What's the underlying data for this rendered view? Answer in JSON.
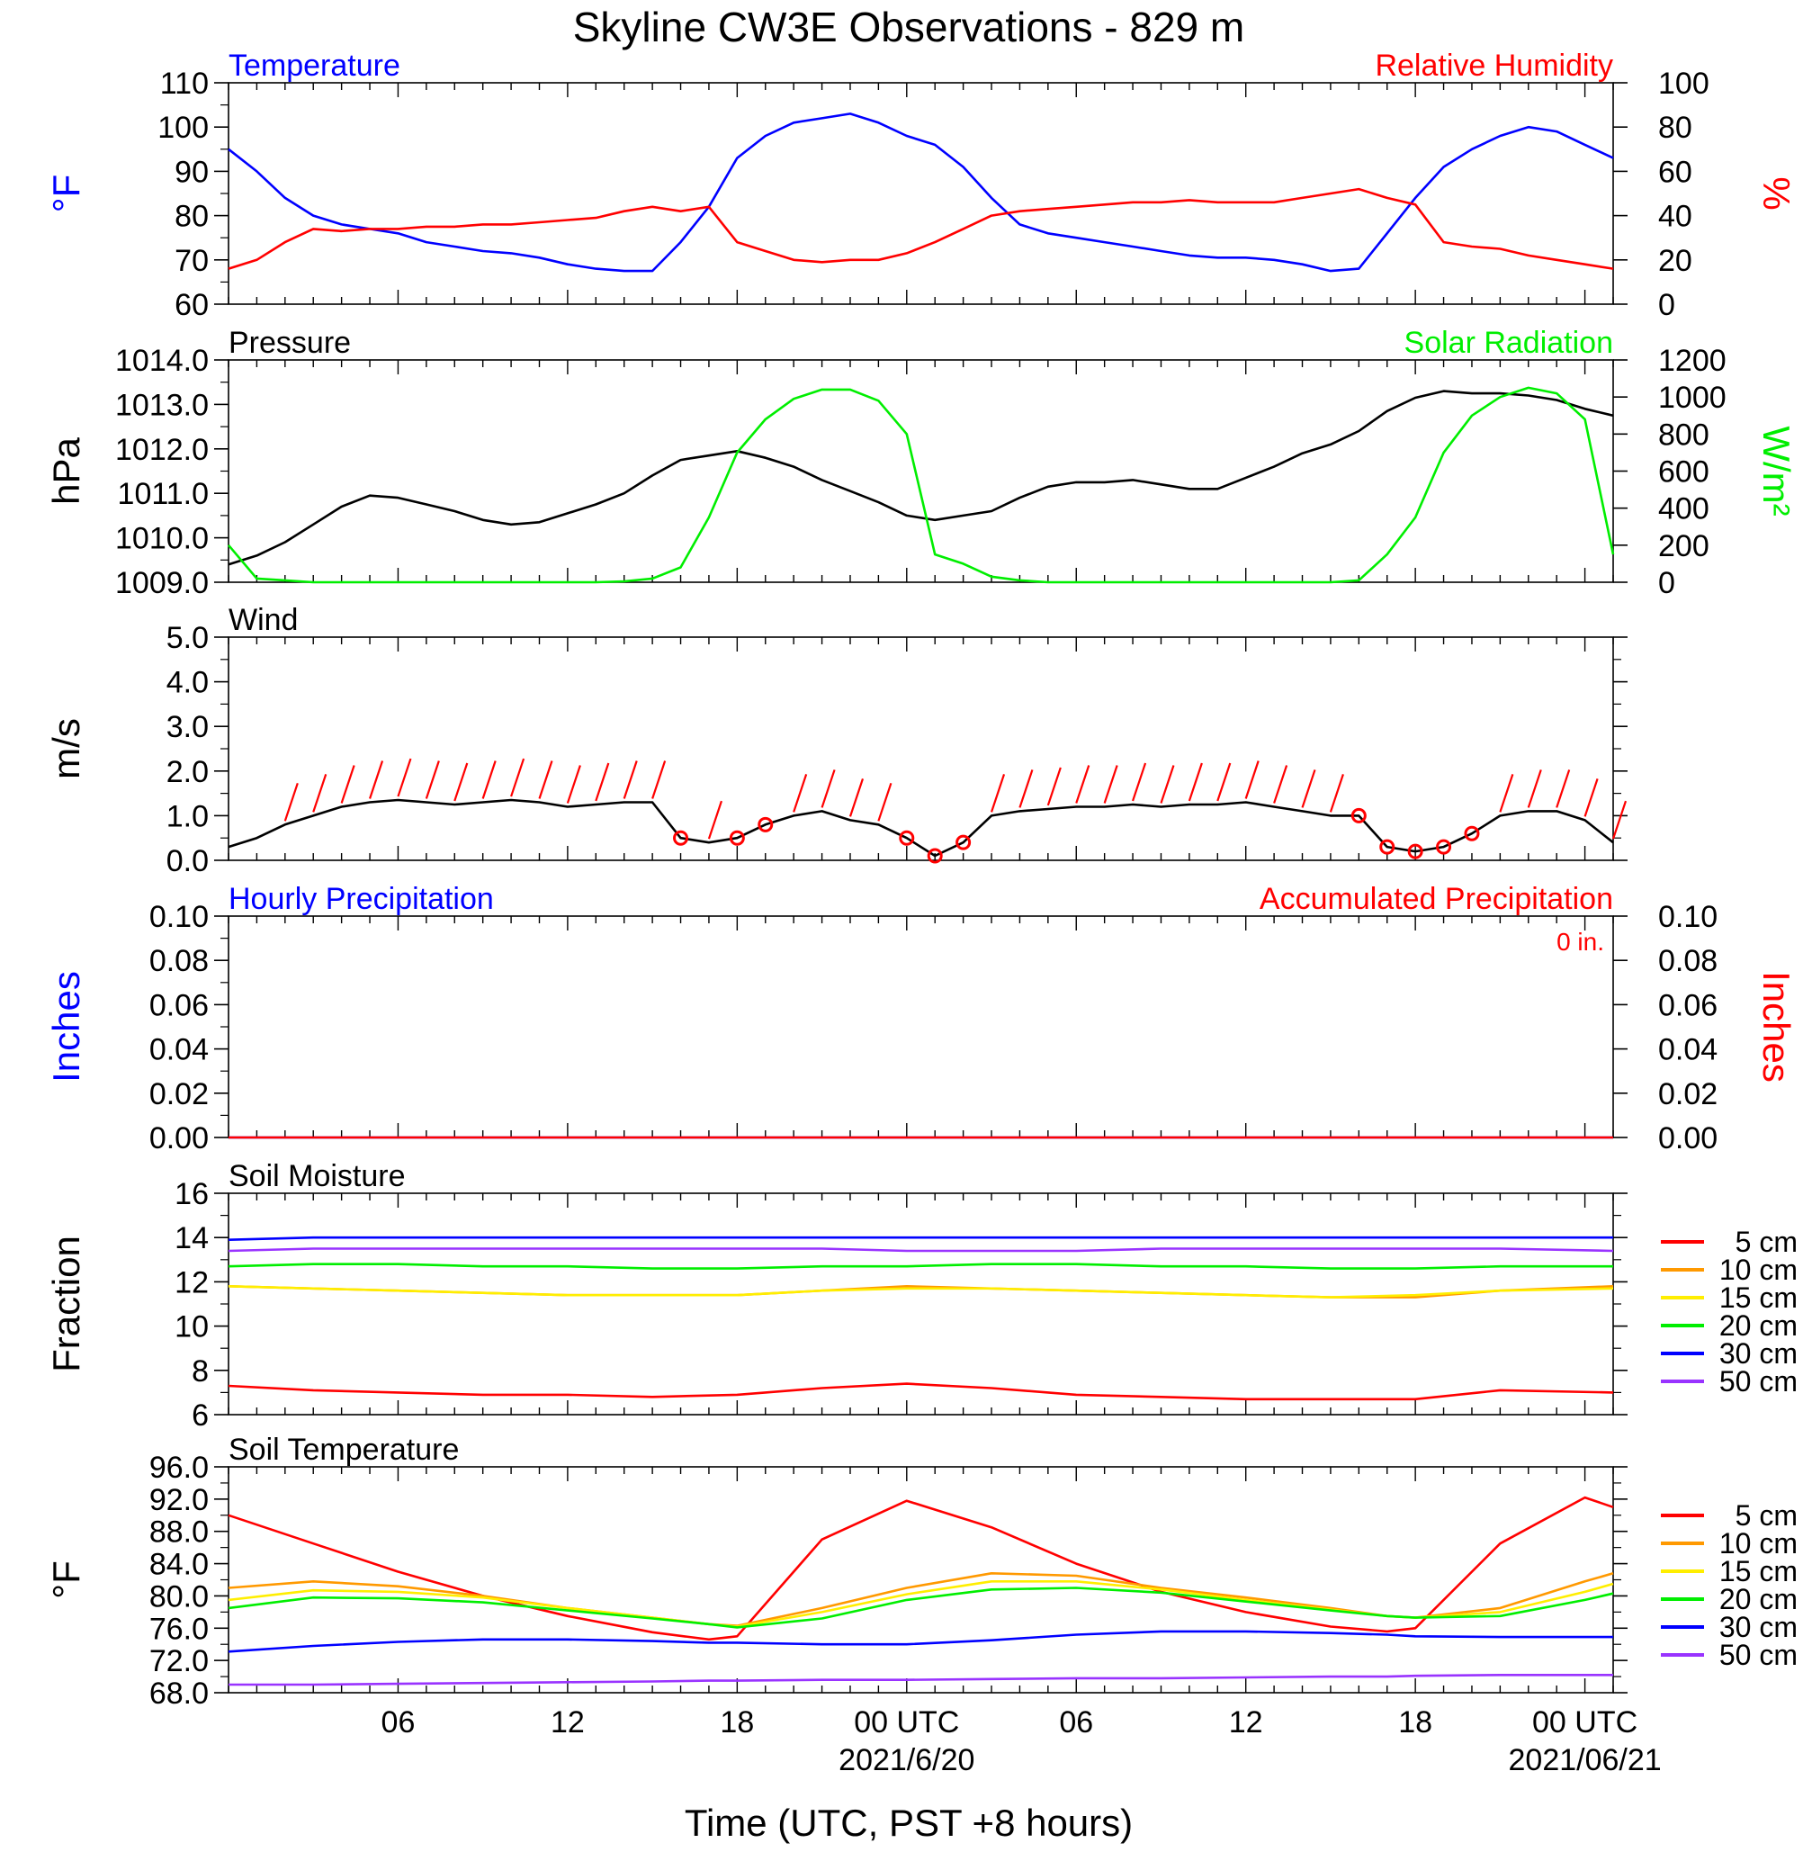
{
  "title": "Skyline CW3E Observations - 829 m",
  "xlabel": "Time (UTC, PST +8 hours)",
  "x_ticks": [
    "06",
    "12",
    "18",
    "00 UTC",
    "06",
    "12",
    "18",
    "00 UTC"
  ],
  "x_dates": [
    "2021/6/20",
    "2021/06/21"
  ],
  "colors": {
    "blue": "#0000ff",
    "red": "#ff0000",
    "green": "#00ee00",
    "black": "#000000",
    "orange": "#ff9900",
    "yellow": "#ffee00",
    "purple": "#9933ff"
  },
  "chart_data": [
    {
      "type": "line",
      "panel": "Temperature / Relative Humidity",
      "left_label": "Temperature",
      "right_label": "Relative Humidity",
      "ylabel_left": "°F",
      "ylabel_right": "%",
      "ylim_left": [
        60,
        110
      ],
      "ylim_right": [
        0,
        100
      ],
      "yticks_left": [
        "60",
        "70",
        "80",
        "90",
        "100",
        "110"
      ],
      "yticks_right": [
        "0",
        "20",
        "40",
        "60",
        "80",
        "100"
      ],
      "x_hours": [
        0,
        1,
        2,
        3,
        4,
        5,
        6,
        7,
        8,
        9,
        10,
        11,
        12,
        13,
        14,
        15,
        16,
        17,
        18,
        19,
        20,
        21,
        22,
        23,
        24,
        25,
        26,
        27,
        28,
        29,
        30,
        31,
        32,
        33,
        34,
        35,
        36,
        37,
        38,
        39,
        40,
        41,
        42,
        43,
        44,
        45,
        46,
        47,
        48,
        49
      ],
      "series": [
        {
          "name": "Temperature",
          "axis": "left",
          "color": "blue",
          "values": [
            95,
            90,
            84,
            80,
            78,
            77,
            76,
            74,
            73,
            72,
            71.5,
            70.5,
            69,
            68,
            67.5,
            67.5,
            74,
            82,
            93,
            98,
            101,
            102,
            103,
            101,
            98,
            96,
            91,
            84,
            78,
            76,
            75,
            74,
            73,
            72,
            71,
            70.5,
            70.5,
            70,
            69,
            67.5,
            68,
            76,
            84,
            91,
            95,
            98,
            100,
            99,
            96,
            93
          ]
        },
        {
          "name": "Relative Humidity",
          "axis": "right",
          "color": "red",
          "values": [
            16,
            20,
            28,
            34,
            33,
            34,
            34,
            35,
            35,
            36,
            36,
            37,
            38,
            39,
            42,
            44,
            42,
            44,
            28,
            24,
            20,
            19,
            20,
            20,
            23,
            28,
            34,
            40,
            42,
            43,
            44,
            45,
            46,
            46,
            47,
            46,
            46,
            46,
            48,
            50,
            52,
            48,
            45,
            28,
            26,
            25,
            22,
            20,
            18,
            16
          ]
        }
      ]
    },
    {
      "type": "line",
      "panel": "Pressure / Solar Radiation",
      "left_label": "Pressure",
      "right_label": "Solar Radiation",
      "ylabel_left": "hPa",
      "ylabel_right": "W/m²",
      "ylim_left": [
        1009.0,
        1014.0
      ],
      "ylim_right": [
        0,
        1200
      ],
      "yticks_left": [
        "1009.0",
        "1010.0",
        "1011.0",
        "1012.0",
        "1013.0",
        "1014.0"
      ],
      "yticks_right": [
        "0",
        "200",
        "400",
        "600",
        "800",
        "1000",
        "1200"
      ],
      "x_hours": [
        0,
        1,
        2,
        3,
        4,
        5,
        6,
        7,
        8,
        9,
        10,
        11,
        12,
        13,
        14,
        15,
        16,
        17,
        18,
        19,
        20,
        21,
        22,
        23,
        24,
        25,
        26,
        27,
        28,
        29,
        30,
        31,
        32,
        33,
        34,
        35,
        36,
        37,
        38,
        39,
        40,
        41,
        42,
        43,
        44,
        45,
        46,
        47,
        48,
        49
      ],
      "series": [
        {
          "name": "Pressure",
          "axis": "left",
          "color": "black",
          "values": [
            1009.4,
            1009.6,
            1009.9,
            1010.3,
            1010.7,
            1010.95,
            1010.9,
            1010.75,
            1010.6,
            1010.4,
            1010.3,
            1010.35,
            1010.55,
            1010.75,
            1011.0,
            1011.4,
            1011.75,
            1011.85,
            1011.95,
            1011.8,
            1011.6,
            1011.3,
            1011.05,
            1010.8,
            1010.5,
            1010.4,
            1010.5,
            1010.6,
            1010.9,
            1011.15,
            1011.25,
            1011.25,
            1011.3,
            1011.2,
            1011.1,
            1011.1,
            1011.35,
            1011.6,
            1011.9,
            1012.1,
            1012.4,
            1012.85,
            1013.15,
            1013.3,
            1013.25,
            1013.25,
            1013.2,
            1013.1,
            1012.9,
            1012.75
          ]
        },
        {
          "name": "Solar Radiation",
          "axis": "right",
          "color": "green",
          "values": [
            200,
            20,
            10,
            0,
            0,
            0,
            0,
            0,
            0,
            0,
            0,
            0,
            0,
            0,
            5,
            20,
            80,
            350,
            700,
            880,
            990,
            1040,
            1040,
            980,
            800,
            150,
            100,
            30,
            10,
            0,
            0,
            0,
            0,
            0,
            0,
            0,
            0,
            0,
            0,
            0,
            10,
            150,
            350,
            700,
            900,
            1000,
            1050,
            1020,
            880,
            150
          ]
        }
      ]
    },
    {
      "type": "line",
      "panel": "Wind",
      "left_label": "Wind",
      "ylabel_left": "m/s",
      "ylim_left": [
        0.0,
        5.0
      ],
      "yticks_left": [
        "0.0",
        "1.0",
        "2.0",
        "3.0",
        "4.0",
        "5.0"
      ],
      "x_hours": [
        0,
        1,
        2,
        3,
        4,
        5,
        6,
        7,
        8,
        9,
        10,
        11,
        12,
        13,
        14,
        15,
        16,
        17,
        18,
        19,
        20,
        21,
        22,
        23,
        24,
        25,
        26,
        27,
        28,
        29,
        30,
        31,
        32,
        33,
        34,
        35,
        36,
        37,
        38,
        39,
        40,
        41,
        42,
        43,
        44,
        45,
        46,
        47,
        48,
        49
      ],
      "series": [
        {
          "name": "Wind speed",
          "color": "black",
          "values": [
            0.3,
            0.5,
            0.8,
            1.0,
            1.2,
            1.3,
            1.35,
            1.3,
            1.25,
            1.3,
            1.35,
            1.3,
            1.2,
            1.25,
            1.3,
            1.3,
            0.5,
            0.4,
            0.5,
            0.8,
            1.0,
            1.1,
            0.9,
            0.8,
            0.5,
            0.1,
            0.4,
            1.0,
            1.1,
            1.15,
            1.2,
            1.2,
            1.25,
            1.2,
            1.25,
            1.25,
            1.3,
            1.2,
            1.1,
            1.0,
            1.0,
            0.3,
            0.2,
            0.3,
            0.6,
            1.0,
            1.1,
            1.1,
            0.9,
            0.4
          ]
        }
      ],
      "barbs_hours": [
        2,
        3,
        4,
        5,
        6,
        7,
        8,
        9,
        10,
        11,
        12,
        13,
        14,
        15,
        16,
        17,
        18,
        19,
        20,
        21,
        22,
        23,
        24,
        25,
        26,
        27,
        28,
        29,
        30,
        31,
        32,
        33,
        34,
        35,
        36,
        37,
        38,
        39,
        40,
        41,
        42,
        43,
        44,
        45,
        46,
        47,
        48,
        49
      ],
      "barbs_calm": [
        false,
        false,
        false,
        false,
        false,
        false,
        false,
        false,
        false,
        false,
        false,
        false,
        false,
        false,
        true,
        false,
        true,
        true,
        false,
        false,
        false,
        false,
        true,
        true,
        true,
        false,
        false,
        false,
        false,
        false,
        false,
        false,
        false,
        false,
        false,
        false,
        false,
        false,
        true,
        true,
        true,
        true,
        true,
        false,
        false,
        false,
        false,
        false
      ]
    },
    {
      "type": "line",
      "panel": "Precipitation",
      "left_label": "Hourly Precipitation",
      "right_label": "Accumulated Precipitation",
      "annotation": "0 in.",
      "ylabel_left": "Inches",
      "ylabel_right": "Inches",
      "ylim_left": [
        0.0,
        0.1
      ],
      "ylim_right": [
        0.0,
        0.1
      ],
      "yticks_left": [
        "0.00",
        "0.02",
        "0.04",
        "0.06",
        "0.08",
        "0.10"
      ],
      "yticks_right": [
        "0.00",
        "0.02",
        "0.04",
        "0.06",
        "0.08",
        "0.10"
      ],
      "x_hours": [
        0,
        49
      ],
      "series": [
        {
          "name": "Hourly Precipitation",
          "color": "blue",
          "values": [
            0,
            0
          ]
        },
        {
          "name": "Accumulated Precipitation",
          "color": "red",
          "values": [
            0,
            0
          ]
        }
      ]
    },
    {
      "type": "line",
      "panel": "Soil Moisture",
      "left_label": "Soil Moisture",
      "ylabel_left": "Fraction",
      "ylim_left": [
        6,
        16
      ],
      "yticks_left": [
        "6",
        "8",
        "10",
        "12",
        "14",
        "16"
      ],
      "x_hours": [
        0,
        3,
        6,
        9,
        12,
        15,
        18,
        21,
        24,
        27,
        30,
        33,
        36,
        39,
        42,
        45,
        49
      ],
      "series": [
        {
          "name": "5 cm",
          "color": "red",
          "values": [
            7.3,
            7.1,
            7.0,
            6.9,
            6.9,
            6.8,
            6.9,
            7.2,
            7.4,
            7.2,
            6.9,
            6.8,
            6.7,
            6.7,
            6.7,
            7.1,
            7.0
          ]
        },
        {
          "name": "10 cm",
          "color": "orange",
          "values": [
            11.8,
            11.7,
            11.6,
            11.5,
            11.4,
            11.4,
            11.4,
            11.6,
            11.8,
            11.7,
            11.6,
            11.5,
            11.4,
            11.3,
            11.3,
            11.6,
            11.8
          ]
        },
        {
          "name": "15 cm",
          "color": "yellow",
          "values": [
            11.8,
            11.7,
            11.6,
            11.5,
            11.4,
            11.4,
            11.4,
            11.6,
            11.7,
            11.7,
            11.6,
            11.5,
            11.4,
            11.3,
            11.4,
            11.6,
            11.7
          ]
        },
        {
          "name": "20 cm",
          "color": "green",
          "values": [
            12.7,
            12.8,
            12.8,
            12.7,
            12.7,
            12.6,
            12.6,
            12.7,
            12.7,
            12.8,
            12.8,
            12.7,
            12.7,
            12.6,
            12.6,
            12.7,
            12.7
          ]
        },
        {
          "name": "30 cm",
          "color": "blue",
          "values": [
            13.9,
            14.0,
            14.0,
            14.0,
            14.0,
            14.0,
            14.0,
            14.0,
            14.0,
            14.0,
            14.0,
            14.0,
            14.0,
            14.0,
            14.0,
            14.0,
            14.0
          ]
        },
        {
          "name": "50 cm",
          "color": "purple",
          "values": [
            13.4,
            13.5,
            13.5,
            13.5,
            13.5,
            13.5,
            13.5,
            13.5,
            13.4,
            13.4,
            13.4,
            13.5,
            13.5,
            13.5,
            13.5,
            13.5,
            13.4
          ]
        }
      ]
    },
    {
      "type": "line",
      "panel": "Soil Temperature",
      "left_label": "Soil Temperature",
      "ylabel_left": "°F",
      "ylim_left": [
        68.0,
        96.0
      ],
      "yticks_left": [
        "68.0",
        "72.0",
        "76.0",
        "80.0",
        "84.0",
        "88.0",
        "92.0",
        "96.0"
      ],
      "x_hours": [
        0,
        3,
        6,
        9,
        12,
        15,
        17,
        18,
        21,
        24,
        27,
        30,
        33,
        36,
        39,
        41,
        42,
        45,
        48,
        49
      ],
      "series": [
        {
          "name": "5 cm",
          "color": "red",
          "values": [
            90.0,
            86.5,
            83.0,
            80.0,
            77.5,
            75.5,
            74.6,
            75.0,
            87.0,
            91.8,
            88.5,
            84.0,
            80.5,
            78.0,
            76.2,
            75.6,
            76.0,
            86.5,
            92.2,
            91.0
          ]
        },
        {
          "name": "10 cm",
          "color": "orange",
          "values": [
            81.0,
            81.8,
            81.2,
            80.0,
            78.5,
            77.3,
            76.5,
            76.3,
            78.5,
            81.0,
            82.8,
            82.5,
            81.0,
            79.8,
            78.5,
            77.5,
            77.3,
            78.5,
            81.8,
            82.8
          ]
        },
        {
          "name": "15 cm",
          "color": "yellow",
          "values": [
            79.5,
            80.7,
            80.5,
            79.8,
            78.5,
            77.3,
            76.5,
            76.2,
            78.0,
            80.2,
            81.8,
            81.8,
            80.8,
            79.5,
            78.3,
            77.5,
            77.3,
            78.0,
            80.5,
            81.5
          ]
        },
        {
          "name": "20 cm",
          "color": "green",
          "values": [
            78.5,
            79.8,
            79.7,
            79.2,
            78.2,
            77.2,
            76.5,
            76.1,
            77.2,
            79.5,
            80.8,
            81.0,
            80.4,
            79.3,
            78.2,
            77.5,
            77.3,
            77.5,
            79.5,
            80.3
          ]
        },
        {
          "name": "30 cm",
          "color": "blue",
          "values": [
            73.1,
            73.8,
            74.3,
            74.6,
            74.6,
            74.4,
            74.2,
            74.2,
            74.0,
            74.0,
            74.5,
            75.2,
            75.6,
            75.6,
            75.4,
            75.2,
            75.0,
            74.9,
            74.9,
            74.9
          ]
        },
        {
          "name": "50 cm",
          "color": "purple",
          "values": [
            69.0,
            69.0,
            69.1,
            69.2,
            69.3,
            69.4,
            69.5,
            69.5,
            69.6,
            69.6,
            69.7,
            69.8,
            69.8,
            69.9,
            70.0,
            70.0,
            70.1,
            70.2,
            70.2,
            70.2
          ]
        }
      ]
    }
  ]
}
